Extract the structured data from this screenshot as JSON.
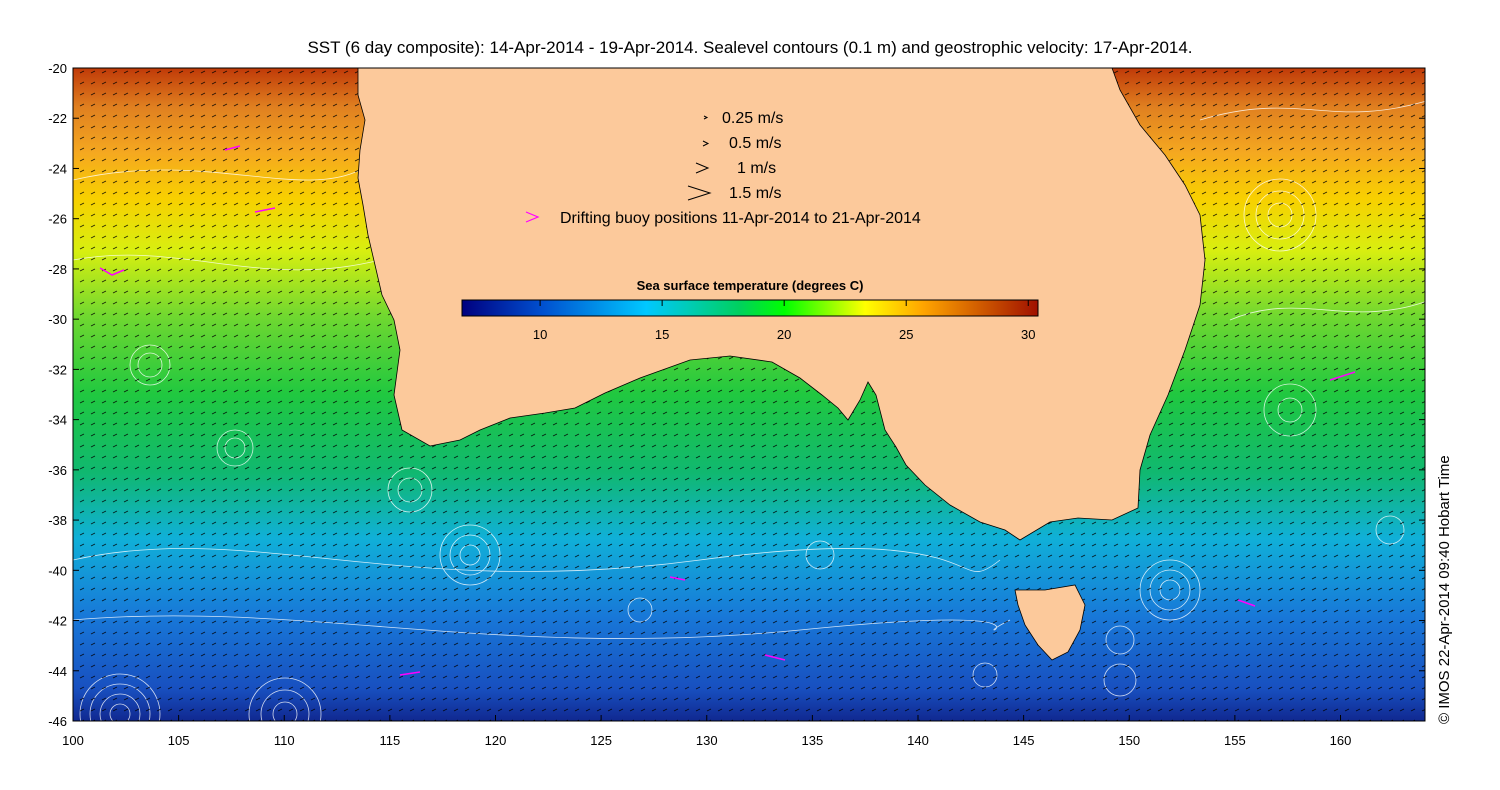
{
  "title": "SST (6 day composite): 14-Apr-2014 - 19-Apr-2014. Sealevel contours (0.1 m) and geostrophic velocity: 17-Apr-2014.",
  "credit": "© IMOS 22-Apr-2014 09:40 Hobart Time",
  "axes": {
    "lon_ticks": [
      "100",
      "105",
      "110",
      "115",
      "120",
      "125",
      "130",
      "135",
      "140",
      "145",
      "150",
      "155",
      "160"
    ],
    "lat_ticks": [
      "-20",
      "-22",
      "-24",
      "-26",
      "-28",
      "-30",
      "-32",
      "-34",
      "-36",
      "-38",
      "-40",
      "-42",
      "-44",
      "-46"
    ],
    "lon_range": [
      100,
      164
    ],
    "lat_range": [
      -46,
      -20
    ]
  },
  "legend": {
    "speeds": [
      "0.25 m/s",
      "0.5 m/s",
      "1 m/s",
      "1.5 m/s"
    ],
    "buoy_label": "Drifting buoy positions 11-Apr-2014 to 21-Apr-2014",
    "buoy_color": "#ff00ff"
  },
  "colorbar": {
    "title": "Sea surface temperature (degrees C)",
    "ticks": [
      "10",
      "15",
      "20",
      "25",
      "30"
    ],
    "range": [
      6.8,
      30.4
    ],
    "colors": [
      "#00007f",
      "#0050d0",
      "#00c8ff",
      "#00d060",
      "#00ff00",
      "#ffff00",
      "#ffa500",
      "#a01000"
    ]
  },
  "colors": {
    "land": "#fcc99b",
    "contour": "#ffffff",
    "arrows": "#000000"
  }
}
